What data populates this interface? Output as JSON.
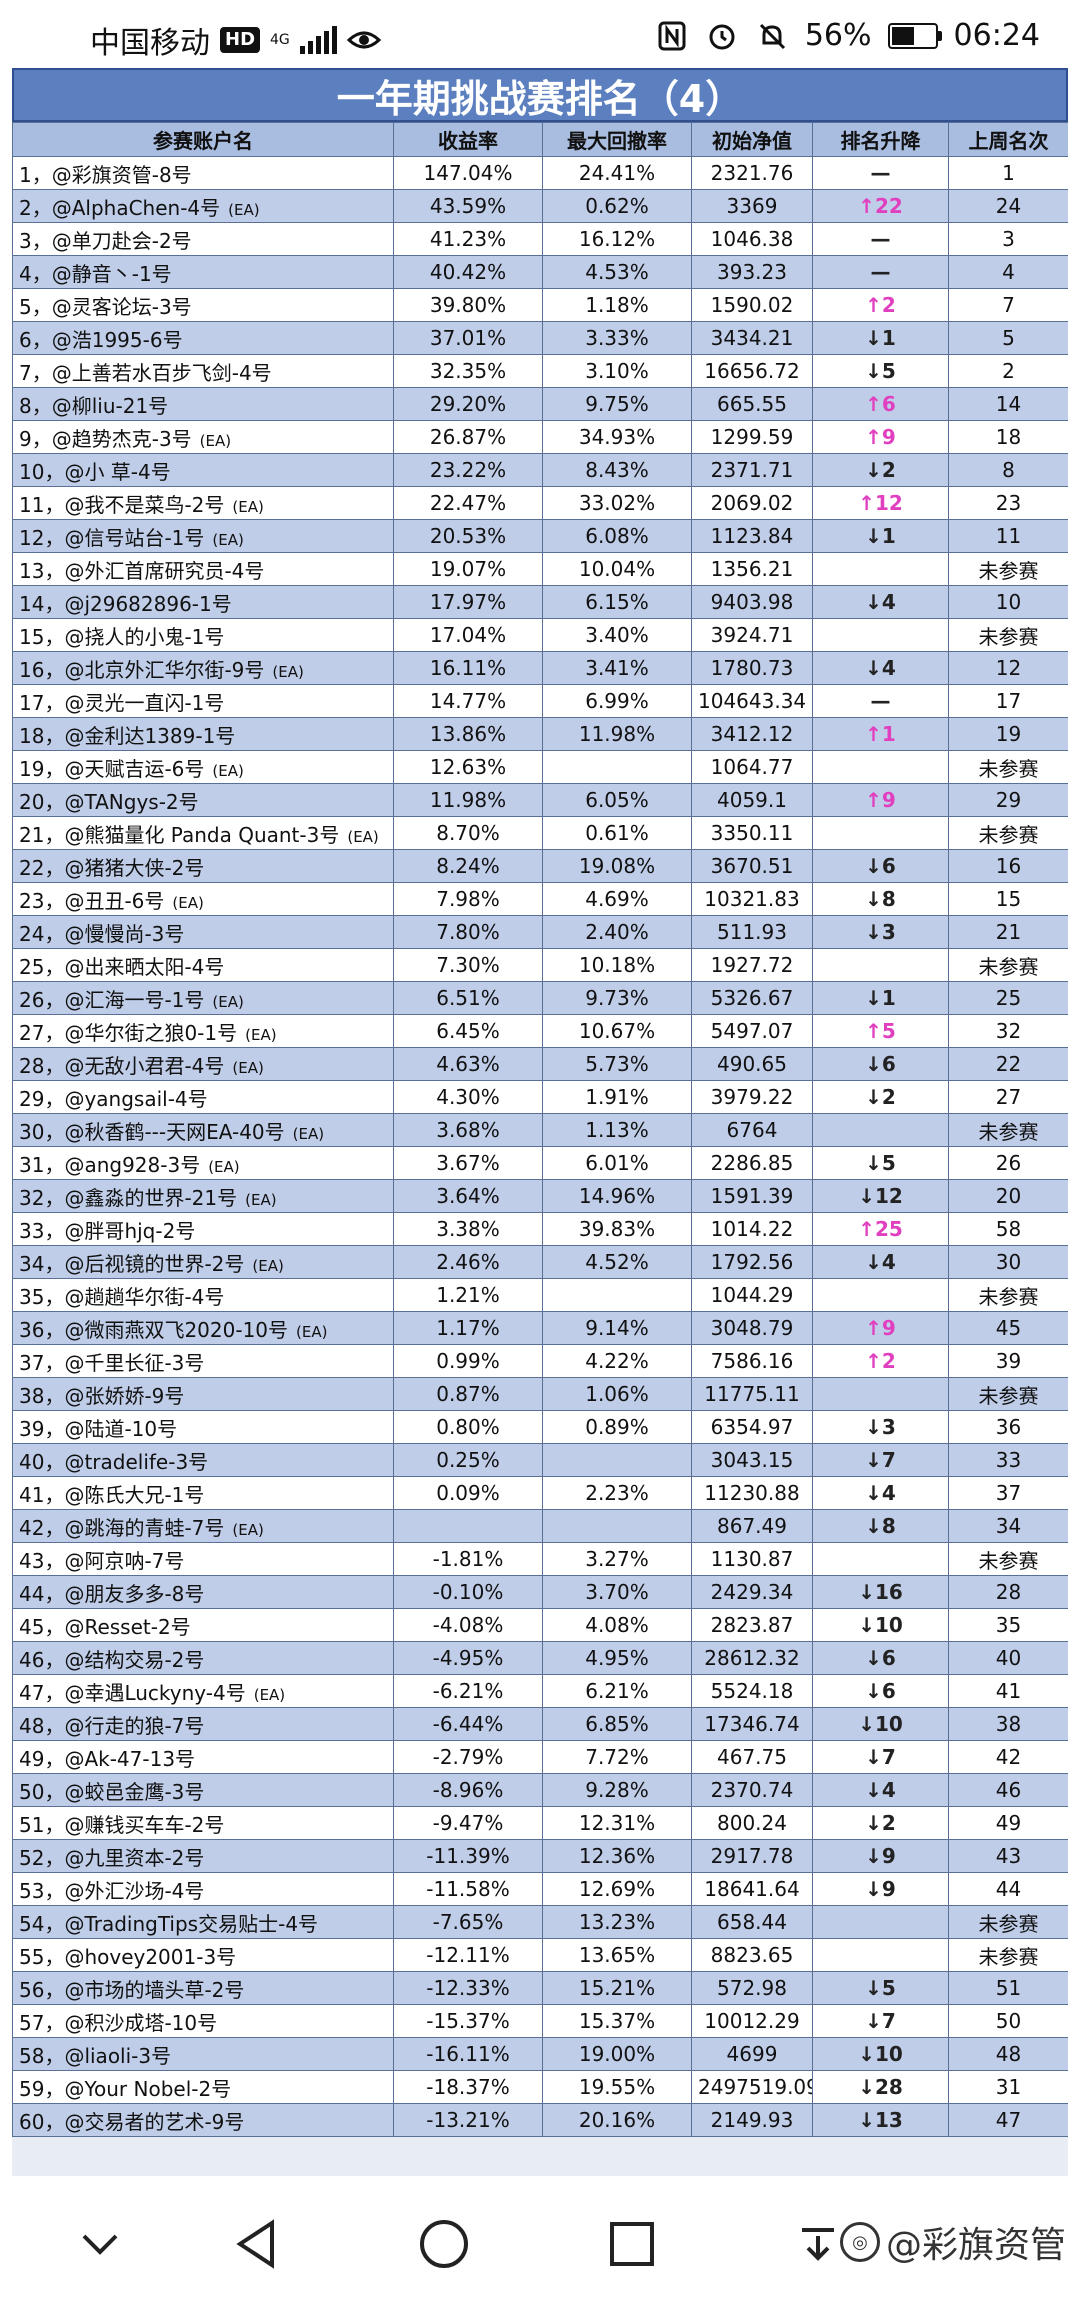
{
  "statusbar": {
    "carrier": "中国移动",
    "hd": "HD",
    "network": "4G",
    "battery_pct_text": "56%",
    "battery_level": 0.56,
    "time": "06:24",
    "icons": [
      "eye-icon",
      "nfc-icon",
      "alarm-icon",
      "mute-icon",
      "battery-icon"
    ]
  },
  "table": {
    "title": "一年期挑战赛排名（4）",
    "headers": [
      "参赛账户名",
      "收益率",
      "最大回撤率",
      "初始净值",
      "排名升降",
      "上周名次"
    ],
    "rows": [
      {
        "name": "1，@彩旗资管-8号",
        "ea": "",
        "ret": "147.04%",
        "dd": "24.41%",
        "nav": "2321.76",
        "dir": "flat",
        "chg": "—",
        "last": "1"
      },
      {
        "name": "2，@AlphaChen-4号",
        "ea": "(EA)",
        "ret": "43.59%",
        "dd": "0.62%",
        "nav": "3369",
        "dir": "up",
        "chg": "↑22",
        "last": "24"
      },
      {
        "name": "3，@单刀赴会-2号",
        "ea": "",
        "ret": "41.23%",
        "dd": "16.12%",
        "nav": "1046.38",
        "dir": "flat",
        "chg": "—",
        "last": "3"
      },
      {
        "name": "4，@静音丶-1号",
        "ea": "",
        "ret": "40.42%",
        "dd": "4.53%",
        "nav": "393.23",
        "dir": "flat",
        "chg": "—",
        "last": "4"
      },
      {
        "name": "5，@灵客论坛-3号",
        "ea": "",
        "ret": "39.80%",
        "dd": "1.18%",
        "nav": "1590.02",
        "dir": "up",
        "chg": "↑2",
        "last": "7"
      },
      {
        "name": "6，@浩1995-6号",
        "ea": "",
        "ret": "37.01%",
        "dd": "3.33%",
        "nav": "3434.21",
        "dir": "down",
        "chg": "↓1",
        "last": "5"
      },
      {
        "name": "7，@上善若水百步飞剑-4号",
        "ea": "",
        "ret": "32.35%",
        "dd": "3.10%",
        "nav": "16656.72",
        "dir": "down",
        "chg": "↓5",
        "last": "2"
      },
      {
        "name": "8，@柳liu-21号",
        "ea": "",
        "ret": "29.20%",
        "dd": "9.75%",
        "nav": "665.55",
        "dir": "up",
        "chg": "↑6",
        "last": "14"
      },
      {
        "name": "9，@趋势杰克-3号",
        "ea": "(EA)",
        "ret": "26.87%",
        "dd": "34.93%",
        "nav": "1299.59",
        "dir": "up",
        "chg": "↑9",
        "last": "18"
      },
      {
        "name": "10，@小 草-4号",
        "ea": "",
        "ret": "23.22%",
        "dd": "8.43%",
        "nav": "2371.71",
        "dir": "down",
        "chg": "↓2",
        "last": "8"
      },
      {
        "name": "11，@我不是菜鸟-2号",
        "ea": "(EA)",
        "ret": "22.47%",
        "dd": "33.02%",
        "nav": "2069.02",
        "dir": "up",
        "chg": "↑12",
        "last": "23"
      },
      {
        "name": "12，@信号站台-1号",
        "ea": "(EA)",
        "ret": "20.53%",
        "dd": "6.08%",
        "nav": "1123.84",
        "dir": "down",
        "chg": "↓1",
        "last": "11"
      },
      {
        "name": "13，@外汇首席研究员-4号",
        "ea": "",
        "ret": "19.07%",
        "dd": "10.04%",
        "nav": "1356.21",
        "dir": "none",
        "chg": "",
        "last": "未参赛"
      },
      {
        "name": "14，@j29682896-1号",
        "ea": "",
        "ret": "17.97%",
        "dd": "6.15%",
        "nav": "9403.98",
        "dir": "down",
        "chg": "↓4",
        "last": "10"
      },
      {
        "name": "15，@挠人的小鬼-1号",
        "ea": "",
        "ret": "17.04%",
        "dd": "3.40%",
        "nav": "3924.71",
        "dir": "none",
        "chg": "",
        "last": "未参赛"
      },
      {
        "name": "16，@北京外汇华尔街-9号",
        "ea": "(EA)",
        "ret": "16.11%",
        "dd": "3.41%",
        "nav": "1780.73",
        "dir": "down",
        "chg": "↓4",
        "last": "12"
      },
      {
        "name": "17，@灵光一直闪-1号",
        "ea": "",
        "ret": "14.77%",
        "dd": "6.99%",
        "nav": "104643.34",
        "dir": "flat",
        "chg": "—",
        "last": "17"
      },
      {
        "name": "18，@金利达1389-1号",
        "ea": "",
        "ret": "13.86%",
        "dd": "11.98%",
        "nav": "3412.12",
        "dir": "up",
        "chg": "↑1",
        "last": "19"
      },
      {
        "name": "19，@天赋吉运-6号",
        "ea": "(EA)",
        "ret": "12.63%",
        "dd": "",
        "nav": "1064.77",
        "dir": "none",
        "chg": "",
        "last": "未参赛"
      },
      {
        "name": "20，@TANgys-2号",
        "ea": "",
        "ret": "11.98%",
        "dd": "6.05%",
        "nav": "4059.1",
        "dir": "up",
        "chg": "↑9",
        "last": "29"
      },
      {
        "name": "21，@熊猫量化 Panda Quant-3号",
        "ea": "(EA)",
        "ret": "8.70%",
        "dd": "0.61%",
        "nav": "3350.11",
        "dir": "none",
        "chg": "",
        "last": "未参赛"
      },
      {
        "name": "22，@猪猪大侠-2号",
        "ea": "",
        "ret": "8.24%",
        "dd": "19.08%",
        "nav": "3670.51",
        "dir": "down",
        "chg": "↓6",
        "last": "16"
      },
      {
        "name": "23，@丑丑-6号",
        "ea": "(EA)",
        "ret": "7.98%",
        "dd": "4.69%",
        "nav": "10321.83",
        "dir": "down",
        "chg": "↓8",
        "last": "15"
      },
      {
        "name": "24，@慢慢尚-3号",
        "ea": "",
        "ret": "7.80%",
        "dd": "2.40%",
        "nav": "511.93",
        "dir": "down",
        "chg": "↓3",
        "last": "21"
      },
      {
        "name": "25，@出来晒太阳-4号",
        "ea": "",
        "ret": "7.30%",
        "dd": "10.18%",
        "nav": "1927.72",
        "dir": "none",
        "chg": "",
        "last": "未参赛"
      },
      {
        "name": "26，@汇海一号-1号",
        "ea": "(EA)",
        "ret": "6.51%",
        "dd": "9.73%",
        "nav": "5326.67",
        "dir": "down",
        "chg": "↓1",
        "last": "25"
      },
      {
        "name": "27，@华尔街之狼0-1号",
        "ea": "(EA)",
        "ret": "6.45%",
        "dd": "10.67%",
        "nav": "5497.07",
        "dir": "up",
        "chg": "↑5",
        "last": "32"
      },
      {
        "name": "28，@无敌小君君-4号",
        "ea": "(EA)",
        "ret": "4.63%",
        "dd": "5.73%",
        "nav": "490.65",
        "dir": "down",
        "chg": "↓6",
        "last": "22"
      },
      {
        "name": "29，@yangsail-4号",
        "ea": "",
        "ret": "4.30%",
        "dd": "1.91%",
        "nav": "3979.22",
        "dir": "down",
        "chg": "↓2",
        "last": "27"
      },
      {
        "name": "30，@秋香鹤---天网EA-40号",
        "ea": "(EA)",
        "ret": "3.68%",
        "dd": "1.13%",
        "nav": "6764",
        "dir": "none",
        "chg": "",
        "last": "未参赛"
      },
      {
        "name": "31，@ang928-3号",
        "ea": "(EA)",
        "ret": "3.67%",
        "dd": "6.01%",
        "nav": "2286.85",
        "dir": "down",
        "chg": "↓5",
        "last": "26"
      },
      {
        "name": "32，@鑫淼的世界-21号",
        "ea": "(EA)",
        "ret": "3.64%",
        "dd": "14.96%",
        "nav": "1591.39",
        "dir": "down",
        "chg": "↓12",
        "last": "20"
      },
      {
        "name": "33，@胖哥hjq-2号",
        "ea": "",
        "ret": "3.38%",
        "dd": "39.83%",
        "nav": "1014.22",
        "dir": "up",
        "chg": "↑25",
        "last": "58"
      },
      {
        "name": "34，@后视镜的世界-2号",
        "ea": "(EA)",
        "ret": "2.46%",
        "dd": "4.52%",
        "nav": "1792.56",
        "dir": "down",
        "chg": "↓4",
        "last": "30"
      },
      {
        "name": "35，@趟趟华尔街-4号",
        "ea": "",
        "ret": "1.21%",
        "dd": "",
        "nav": "1044.29",
        "dir": "none",
        "chg": "",
        "last": "未参赛"
      },
      {
        "name": "36，@微雨燕双飞2020-10号",
        "ea": "(EA)",
        "ret": "1.17%",
        "dd": "9.14%",
        "nav": "3048.79",
        "dir": "up",
        "chg": "↑9",
        "last": "45"
      },
      {
        "name": "37，@千里长征-3号",
        "ea": "",
        "ret": "0.99%",
        "dd": "4.22%",
        "nav": "7586.16",
        "dir": "up",
        "chg": "↑2",
        "last": "39"
      },
      {
        "name": "38，@张娇娇-9号",
        "ea": "",
        "ret": "0.87%",
        "dd": "1.06%",
        "nav": "11775.11",
        "dir": "none",
        "chg": "",
        "last": "未参赛"
      },
      {
        "name": "39，@陆道-10号",
        "ea": "",
        "ret": "0.80%",
        "dd": "0.89%",
        "nav": "6354.97",
        "dir": "down",
        "chg": "↓3",
        "last": "36"
      },
      {
        "name": "40，@tradelife-3号",
        "ea": "",
        "ret": "0.25%",
        "dd": "",
        "nav": "3043.15",
        "dir": "down",
        "chg": "↓7",
        "last": "33"
      },
      {
        "name": "41，@陈氏大兄-1号",
        "ea": "",
        "ret": "0.09%",
        "dd": "2.23%",
        "nav": "11230.88",
        "dir": "down",
        "chg": "↓4",
        "last": "37"
      },
      {
        "name": "42，@跳海的青蛙-7号",
        "ea": "(EA)",
        "ret": "",
        "dd": "",
        "nav": "867.49",
        "dir": "down",
        "chg": "↓8",
        "last": "34"
      },
      {
        "name": "43，@阿京呐-7号",
        "ea": "",
        "ret": "-1.81%",
        "dd": "3.27%",
        "nav": "1130.87",
        "dir": "none",
        "chg": "",
        "last": "未参赛"
      },
      {
        "name": "44，@朋友多多-8号",
        "ea": "",
        "ret": "-0.10%",
        "dd": "3.70%",
        "nav": "2429.34",
        "dir": "down",
        "chg": "↓16",
        "last": "28"
      },
      {
        "name": "45，@Resset-2号",
        "ea": "",
        "ret": "-4.08%",
        "dd": "4.08%",
        "nav": "2823.87",
        "dir": "down",
        "chg": "↓10",
        "last": "35"
      },
      {
        "name": "46，@结构交易-2号",
        "ea": "",
        "ret": "-4.95%",
        "dd": "4.95%",
        "nav": "28612.32",
        "dir": "down",
        "chg": "↓6",
        "last": "40"
      },
      {
        "name": "47，@幸遇Luckyny-4号",
        "ea": "(EA)",
        "ret": "-6.21%",
        "dd": "6.21%",
        "nav": "5524.18",
        "dir": "down",
        "chg": "↓6",
        "last": "41"
      },
      {
        "name": "48，@行走的狼-7号",
        "ea": "",
        "ret": "-6.44%",
        "dd": "6.85%",
        "nav": "17346.74",
        "dir": "down",
        "chg": "↓10",
        "last": "38"
      },
      {
        "name": "49，@Ak-47-13号",
        "ea": "",
        "ret": "-2.79%",
        "dd": "7.72%",
        "nav": "467.75",
        "dir": "down",
        "chg": "↓7",
        "last": "42"
      },
      {
        "name": "50，@蛟邑金鹰-3号",
        "ea": "",
        "ret": "-8.96%",
        "dd": "9.28%",
        "nav": "2370.74",
        "dir": "down",
        "chg": "↓4",
        "last": "46"
      },
      {
        "name": "51，@赚钱买车车-2号",
        "ea": "",
        "ret": "-9.47%",
        "dd": "12.31%",
        "nav": "800.24",
        "dir": "down",
        "chg": "↓2",
        "last": "49"
      },
      {
        "name": "52，@九里资本-2号",
        "ea": "",
        "ret": "-11.39%",
        "dd": "12.36%",
        "nav": "2917.78",
        "dir": "down",
        "chg": "↓9",
        "last": "43"
      },
      {
        "name": "53，@外汇沙场-4号",
        "ea": "",
        "ret": "-11.58%",
        "dd": "12.69%",
        "nav": "18641.64",
        "dir": "down",
        "chg": "↓9",
        "last": "44"
      },
      {
        "name": "54，@TradingTips交易贴士-4号",
        "ea": "",
        "ret": "-7.65%",
        "dd": "13.23%",
        "nav": "658.44",
        "dir": "none",
        "chg": "",
        "last": "未参赛"
      },
      {
        "name": "55，@hovey2001-3号",
        "ea": "",
        "ret": "-12.11%",
        "dd": "13.65%",
        "nav": "8823.65",
        "dir": "none",
        "chg": "",
        "last": "未参赛"
      },
      {
        "name": "56，@市场的墙头草-2号",
        "ea": "",
        "ret": "-12.33%",
        "dd": "15.21%",
        "nav": "572.98",
        "dir": "down",
        "chg": "↓5",
        "last": "51"
      },
      {
        "name": "57，@积沙成塔-10号",
        "ea": "",
        "ret": "-15.37%",
        "dd": "15.37%",
        "nav": "10012.29",
        "dir": "down",
        "chg": "↓7",
        "last": "50"
      },
      {
        "name": "58，@liaoli-3号",
        "ea": "",
        "ret": "-16.11%",
        "dd": "19.00%",
        "nav": "4699",
        "dir": "down",
        "chg": "↓10",
        "last": "48"
      },
      {
        "name": "59，@Your Nobel-2号",
        "ea": "",
        "ret": "-18.37%",
        "dd": "19.55%",
        "nav": "2497519.09",
        "dir": "down",
        "chg": "↓28",
        "last": "31"
      },
      {
        "name": "60，@交易者的艺术-9号",
        "ea": "",
        "ret": "-13.21%",
        "dd": "20.16%",
        "nav": "2149.93",
        "dir": "down",
        "chg": "↓13",
        "last": "47"
      }
    ]
  },
  "navbar": {
    "watermark": "@彩旗资管",
    "icons": [
      "back-icon",
      "home-icon",
      "recents-icon",
      "collapse-icon",
      "weibo-icon"
    ]
  }
}
